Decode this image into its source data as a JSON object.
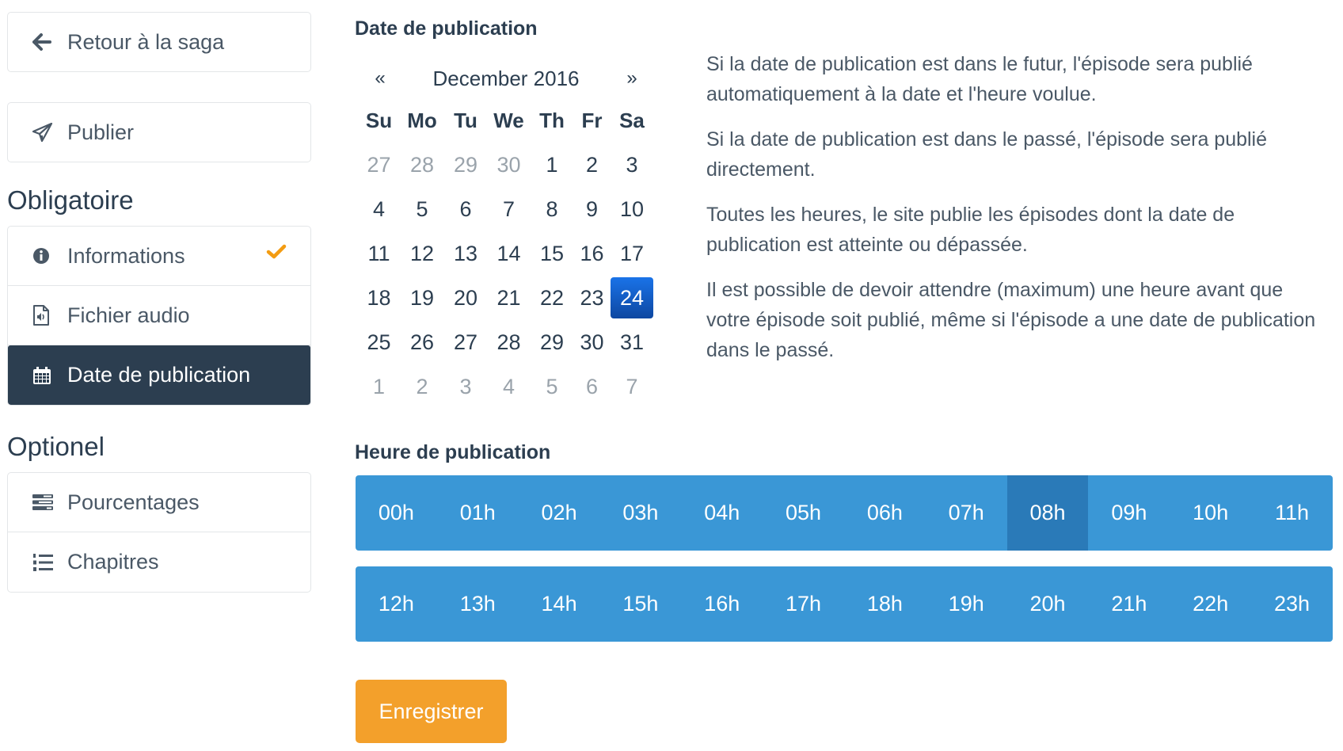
{
  "sidebar": {
    "back_label": "Retour à la saga",
    "publish_label": "Publier",
    "required_heading": "Obligatoire",
    "required_items": [
      {
        "label": "Informations",
        "icon": "info-circle-icon",
        "done": true
      },
      {
        "label": "Fichier audio",
        "icon": "audio-file-icon",
        "done": false
      },
      {
        "label": "Date de publication",
        "icon": "calendar-icon",
        "active": true
      }
    ],
    "optional_heading": "Optionel",
    "optional_items": [
      {
        "label": "Pourcentages",
        "icon": "tasks-icon"
      },
      {
        "label": "Chapitres",
        "icon": "ordered-list-icon"
      }
    ]
  },
  "date_section": {
    "label": "Date de publication",
    "calendar": {
      "prev": "«",
      "next": "»",
      "month_title": "December 2016",
      "weekdays": [
        "Su",
        "Mo",
        "Tu",
        "We",
        "Th",
        "Fr",
        "Sa"
      ],
      "weeks": [
        [
          "27",
          "28",
          "29",
          "30",
          "1",
          "2",
          "3"
        ],
        [
          "4",
          "5",
          "6",
          "7",
          "8",
          "9",
          "10"
        ],
        [
          "11",
          "12",
          "13",
          "14",
          "15",
          "16",
          "17"
        ],
        [
          "18",
          "19",
          "20",
          "21",
          "22",
          "23",
          "24"
        ],
        [
          "25",
          "26",
          "27",
          "28",
          "29",
          "30",
          "31"
        ],
        [
          "1",
          "2",
          "3",
          "4",
          "5",
          "6",
          "7"
        ]
      ],
      "selected_day": "24"
    },
    "help": [
      "Si la date de publication est dans le futur, l'épisode sera publié automatiquement à la date et l'heure voulue.",
      "Si la date de publication est dans le passé, l'épisode sera publié directement.",
      "Toutes les heures, le site publie les épisodes dont la date de publication est atteinte ou dépassée.",
      "Il est possible de devoir attendre (maximum) une heure avant que votre épisode soit publié, même si l'épisode a une date de publication dans le passé."
    ]
  },
  "hour_section": {
    "label": "Heure de publication",
    "row1": [
      "00h",
      "01h",
      "02h",
      "03h",
      "04h",
      "05h",
      "06h",
      "07h",
      "08h",
      "09h",
      "10h",
      "11h"
    ],
    "row2": [
      "12h",
      "13h",
      "14h",
      "15h",
      "16h",
      "17h",
      "18h",
      "19h",
      "20h",
      "21h",
      "22h",
      "23h"
    ],
    "selected": "08h"
  },
  "save_label": "Enregistrer",
  "colors": {
    "primary_dark": "#2c3e50",
    "hour_bar": "#3a97d6",
    "hour_selected": "#2a7ab8",
    "save": "#f3a02b",
    "check": "#f39c12",
    "calendar_selected": "#1565c0"
  }
}
